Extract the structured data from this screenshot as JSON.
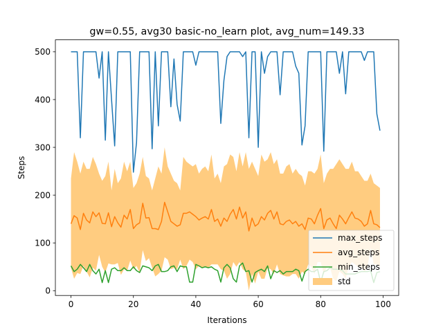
{
  "chart_data": {
    "type": "line",
    "title": "gw=0.55, avg30 basic-no_learn plot, avg_num=149.33",
    "xlabel": "Iterations",
    "ylabel": "Steps",
    "xlim": [
      -5,
      105
    ],
    "ylim": [
      -10,
      525
    ],
    "xticks": [
      0,
      20,
      40,
      60,
      80,
      100
    ],
    "yticks": [
      0,
      100,
      200,
      300,
      400,
      500
    ],
    "legend_position": "lower-right",
    "colors": {
      "max_steps": "#1f77b4",
      "avg_steps": "#ff7f0e",
      "min_steps": "#2ca02c",
      "std": "#ffcc80"
    },
    "x": [
      0,
      1,
      2,
      3,
      4,
      5,
      6,
      7,
      8,
      9,
      10,
      11,
      12,
      13,
      14,
      15,
      16,
      17,
      18,
      19,
      20,
      21,
      22,
      23,
      24,
      25,
      26,
      27,
      28,
      29,
      30,
      31,
      32,
      33,
      34,
      35,
      36,
      37,
      38,
      39,
      40,
      41,
      42,
      43,
      44,
      45,
      46,
      47,
      48,
      49,
      50,
      51,
      52,
      53,
      54,
      55,
      56,
      57,
      58,
      59,
      60,
      61,
      62,
      63,
      64,
      65,
      66,
      67,
      68,
      69,
      70,
      71,
      72,
      73,
      74,
      75,
      76,
      77,
      78,
      79,
      80,
      81,
      82,
      83,
      84,
      85,
      86,
      87,
      88,
      89,
      90,
      91,
      92,
      93,
      94,
      95,
      96,
      97,
      98,
      99
    ],
    "series": [
      {
        "name": "max_steps",
        "values": [
          500,
          500,
          500,
          320,
          500,
          500,
          500,
          500,
          500,
          445,
          500,
          315,
          500,
          400,
          303,
          500,
          500,
          500,
          500,
          500,
          248,
          310,
          500,
          500,
          500,
          500,
          297,
          500,
          345,
          500,
          500,
          500,
          385,
          485,
          390,
          355,
          500,
          500,
          500,
          500,
          472,
          500,
          500,
          500,
          500,
          500,
          500,
          500,
          350,
          440,
          490,
          500,
          500,
          500,
          500,
          490,
          500,
          320,
          500,
          500,
          300,
          500,
          455,
          490,
          500,
          500,
          500,
          410,
          500,
          500,
          500,
          500,
          470,
          455,
          305,
          345,
          500,
          500,
          500,
          500,
          500,
          292,
          500,
          500,
          500,
          500,
          455,
          500,
          412,
          500,
          500,
          500,
          500,
          500,
          482,
          500,
          500,
          500,
          370,
          335
        ]
      },
      {
        "name": "avg_steps",
        "values": [
          140,
          157,
          152,
          128,
          162,
          148,
          142,
          165,
          155,
          163,
          141,
          140,
          163,
          134,
          155,
          142,
          133,
          158,
          150,
          170,
          130,
          138,
          142,
          183,
          152,
          153,
          130,
          130,
          128,
          145,
          185,
          165,
          145,
          140,
          135,
          138,
          162,
          162,
          165,
          160,
          155,
          148,
          152,
          155,
          150,
          170,
          145,
          150,
          135,
          152,
          145,
          160,
          170,
          150,
          175,
          152,
          165,
          125,
          152,
          135,
          140,
          155,
          148,
          162,
          168,
          150,
          165,
          140,
          138,
          145,
          148,
          140,
          145,
          135,
          140,
          128,
          152,
          150,
          140,
          158,
          172,
          130,
          148,
          152,
          140,
          130,
          158,
          150,
          140,
          153,
          165,
          152,
          150,
          145,
          135,
          140,
          168,
          140,
          138,
          132
        ]
      },
      {
        "name": "min_steps",
        "values": [
          52,
          40,
          45,
          55,
          48,
          40,
          55,
          42,
          35,
          45,
          17,
          42,
          17,
          45,
          48,
          42,
          42,
          48,
          42,
          42,
          50,
          42,
          38,
          52,
          50,
          48,
          42,
          52,
          55,
          40,
          40,
          42,
          50,
          52,
          40,
          52,
          50,
          50,
          18,
          18,
          55,
          52,
          48,
          50,
          48,
          50,
          45,
          42,
          18,
          48,
          55,
          48,
          25,
          18,
          52,
          58,
          40,
          42,
          18,
          38,
          42,
          45,
          40,
          52,
          25,
          42,
          38,
          42,
          35,
          40,
          40,
          40,
          45,
          42,
          20,
          40,
          45,
          40,
          40,
          45,
          18,
          40,
          42,
          48,
          45,
          45,
          45,
          42,
          35,
          35,
          35,
          35,
          38,
          40,
          40,
          40,
          42,
          17,
          38,
          40
        ]
      }
    ],
    "std_band": {
      "name": "std",
      "upper": [
        235,
        290,
        270,
        245,
        270,
        255,
        255,
        280,
        265,
        245,
        230,
        240,
        270,
        210,
        255,
        225,
        235,
        270,
        250,
        270,
        215,
        225,
        245,
        280,
        240,
        235,
        210,
        235,
        260,
        245,
        300,
        260,
        245,
        230,
        225,
        210,
        280,
        270,
        265,
        260,
        265,
        245,
        255,
        260,
        250,
        285,
        235,
        245,
        225,
        260,
        265,
        285,
        280,
        250,
        290,
        260,
        290,
        255,
        270,
        255,
        240,
        285,
        270,
        275,
        290,
        265,
        275,
        245,
        245,
        260,
        265,
        245,
        255,
        245,
        240,
        220,
        250,
        250,
        245,
        255,
        285,
        225,
        245,
        255,
        255,
        265,
        275,
        265,
        255,
        255,
        270,
        250,
        250,
        240,
        230,
        230,
        245,
        225,
        220,
        215
      ],
      "lower": [
        48,
        25,
        37,
        35,
        52,
        40,
        28,
        48,
        42,
        75,
        50,
        38,
        57,
        55,
        55,
        58,
        33,
        45,
        42,
        63,
        45,
        52,
        38,
        85,
        62,
        68,
        48,
        30,
        35,
        42,
        70,
        65,
        45,
        48,
        45,
        65,
        45,
        52,
        65,
        60,
        45,
        52,
        48,
        50,
        48,
        55,
        55,
        55,
        45,
        42,
        25,
        35,
        60,
        50,
        60,
        45,
        40,
        0,
        35,
        15,
        40,
        25,
        25,
        48,
        45,
        35,
        55,
        35,
        32,
        30,
        30,
        35,
        35,
        25,
        40,
        35,
        55,
        50,
        35,
        60,
        60,
        35,
        50,
        48,
        25,
        20,
        40,
        35,
        25,
        50,
        60,
        55,
        50,
        50,
        40,
        50,
        90,
        55,
        55,
        50
      ]
    }
  }
}
